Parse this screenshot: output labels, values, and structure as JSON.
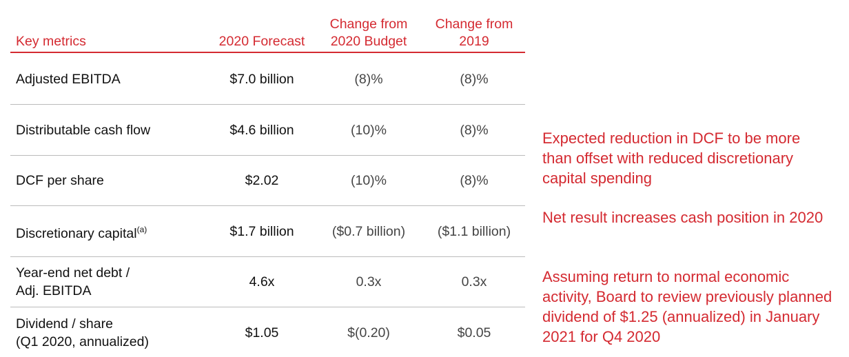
{
  "table": {
    "header": [
      [
        "Key metrics"
      ],
      [
        "2020 Forecast"
      ],
      [
        "Change from",
        "2020 Budget"
      ],
      [
        "Change from",
        "2019"
      ]
    ],
    "rows": [
      {
        "label": [
          "Adjusted EBITDA"
        ],
        "cells": [
          "$7.0 billion",
          "(8)%",
          "(8)%"
        ]
      },
      {
        "label": [
          "Distributable cash flow"
        ],
        "cells": [
          "$4.6 billion",
          "(10)%",
          "(8)%"
        ]
      },
      {
        "label": [
          "DCF per share"
        ],
        "cells": [
          "$2.02",
          "(10)%",
          "(8)%"
        ]
      },
      {
        "label": [
          "Discretionary capital"
        ],
        "superscript": "(a)",
        "cells": [
          "$1.7 billion",
          "($0.7 billion)",
          "($1.1 billion)"
        ]
      },
      {
        "label": [
          "Year-end net debt /",
          "Adj. EBITDA"
        ],
        "cells": [
          "4.6x",
          "0.3x",
          "0.3x"
        ]
      },
      {
        "label": [
          "Dividend / share",
          "(Q1 2020, annualized)"
        ],
        "cells": [
          "$1.05",
          "$(0.20)",
          "$0.05"
        ]
      }
    ]
  },
  "notes": [
    "Expected reduction in DCF to be more than offset with reduced discretionary capital spending",
    "Net result increases cash position in 2020",
    "Assuming return to normal economic activity, Board to review previously planned dividend of $1.25 (annualized) in January 2021 for Q4 2020"
  ]
}
